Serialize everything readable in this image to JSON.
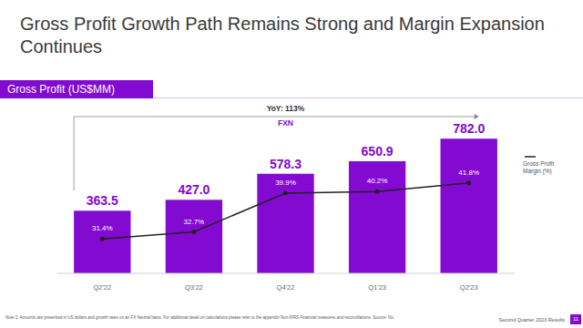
{
  "chart_data": {
    "type": "bar",
    "title": "Gross Profit Growth Path Remains Strong and Margin Expansion Continues",
    "categories": [
      "Q2'22",
      "Q3'22",
      "Q4'22",
      "Q1'23",
      "Q2'23"
    ],
    "series": [
      {
        "name": "Gross Profit (US$MM)",
        "type": "bar",
        "color": "#820ad1",
        "values": [
          363.5,
          427.0,
          578.3,
          650.9,
          782.0
        ],
        "value_labels": [
          "363.5",
          "427.0",
          "578.3",
          "650.9",
          "782.0"
        ],
        "data_labels": true
      },
      {
        "name": "Gross Profit Margin (%)",
        "type": "line",
        "axis": "y2",
        "color": "#222222",
        "marker": "circle",
        "values": [
          31.4,
          32.7,
          39.9,
          40.2,
          41.8
        ],
        "value_labels": [
          "31.4%",
          "32.7%",
          "39.9%",
          "40.2%",
          "41.8%"
        ],
        "data_labels": true
      }
    ],
    "ylim": [
      0,
      1000
    ],
    "y2lim": [
      25,
      57
    ],
    "tick_labels": false,
    "grid": false,
    "legend": "right",
    "annotations": [
      "YoY: 113%",
      "FXN"
    ],
    "footnote": "Note 1: Amounts are presented in US dollars and growth rates on an FX Neutral basis. For additional detail on calculations please refer to the appendix Non-IFRS Financial measures and reconciliations. Source: Nu.",
    "footer": "Second Quarter 2023 Results",
    "page_number": "11"
  }
}
